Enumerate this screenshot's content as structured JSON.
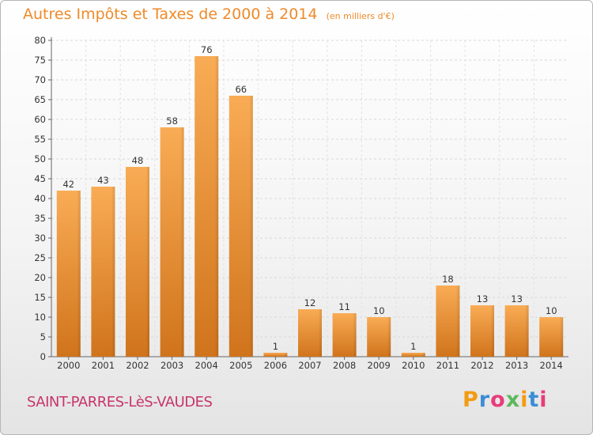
{
  "header": {
    "title": "Autres Impôts et Taxes de 2000 à 2014",
    "unit_note": "(en milliers d'€)"
  },
  "footer": {
    "commune": "SAINT-PARRES-LèS-VAUDES",
    "logo_text": "Proxiti",
    "logo_colors": [
      "#f39c12",
      "#3c8dd6",
      "#e83c7a",
      "#5cb85c",
      "#f39c12",
      "#3c8dd6",
      "#e83c7a"
    ]
  },
  "colors": {
    "bar_light": "#f9ac55",
    "bar_dark": "#d0741c",
    "title": "#ef8a2a",
    "commune": "#c7356b",
    "grid": "#d8d8d8"
  },
  "chart_data": {
    "type": "bar",
    "title": "Autres Impôts et Taxes de 2000 à 2014",
    "subtitle": "(en milliers d'€)",
    "xlabel": "",
    "ylabel": "",
    "categories": [
      "2000",
      "2001",
      "2002",
      "2003",
      "2004",
      "2005",
      "2006",
      "2007",
      "2008",
      "2009",
      "2010",
      "2011",
      "2012",
      "2013",
      "2014"
    ],
    "values": [
      42,
      43,
      48,
      58,
      76,
      66,
      1,
      12,
      11,
      10,
      1,
      18,
      13,
      13,
      10
    ],
    "ylim": [
      0,
      80
    ],
    "yticks": [
      0,
      5,
      10,
      15,
      20,
      25,
      30,
      35,
      40,
      45,
      50,
      55,
      60,
      65,
      70,
      75,
      80
    ],
    "grid": true,
    "legend": "none"
  }
}
